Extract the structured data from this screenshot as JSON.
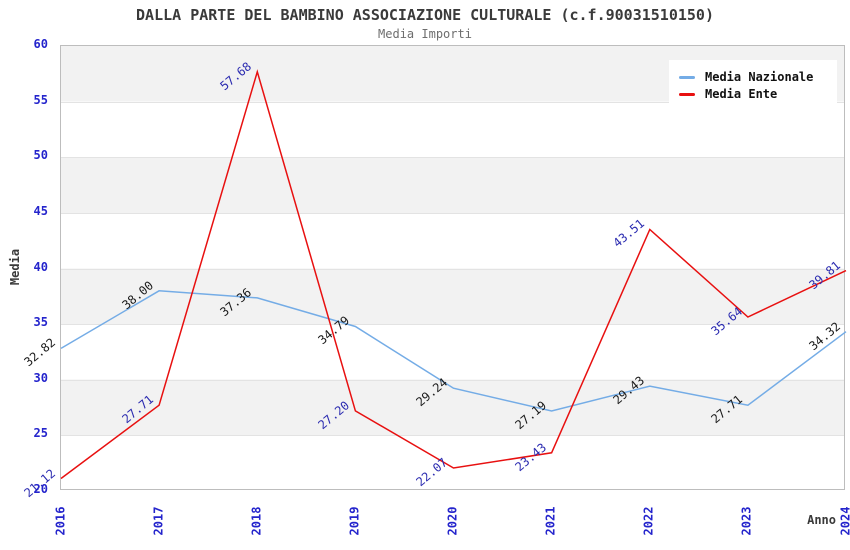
{
  "header": {
    "title": "DALLA PARTE DEL BAMBINO ASSOCIAZIONE CULTURALE (c.f.90031510150)",
    "subtitle": "Media Importi"
  },
  "chart_data": {
    "type": "line",
    "title": "DALLA PARTE DEL BAMBINO ASSOCIAZIONE CULTURALE (c.f.90031510150)",
    "subtitle": "Media Importi",
    "xlabel": "Anno",
    "ylabel": "Media",
    "categories": [
      "2016",
      "2017",
      "2018",
      "2019",
      "2020",
      "2021",
      "2022",
      "2023",
      "2024"
    ],
    "series": [
      {
        "name": "Media Nazionale",
        "color": "#74ace6",
        "label_color": "#1a1a1a",
        "values": [
          32.82,
          38.0,
          37.36,
          34.79,
          29.24,
          27.19,
          29.43,
          27.71,
          34.32
        ]
      },
      {
        "name": "Media Ente",
        "color": "#e81010",
        "label_color": "#2a2ab0",
        "values": [
          21.12,
          27.71,
          57.68,
          27.2,
          22.07,
          23.43,
          43.51,
          35.64,
          39.81
        ]
      }
    ],
    "ylim": [
      20,
      60
    ],
    "y_ticks": [
      60,
      55,
      50,
      45,
      40,
      35,
      30,
      25,
      20
    ],
    "grid": "horizontal-bands",
    "legend_position": "top-right",
    "tick_label_color": "#2424cc",
    "band_color": "#f2f2f2"
  }
}
